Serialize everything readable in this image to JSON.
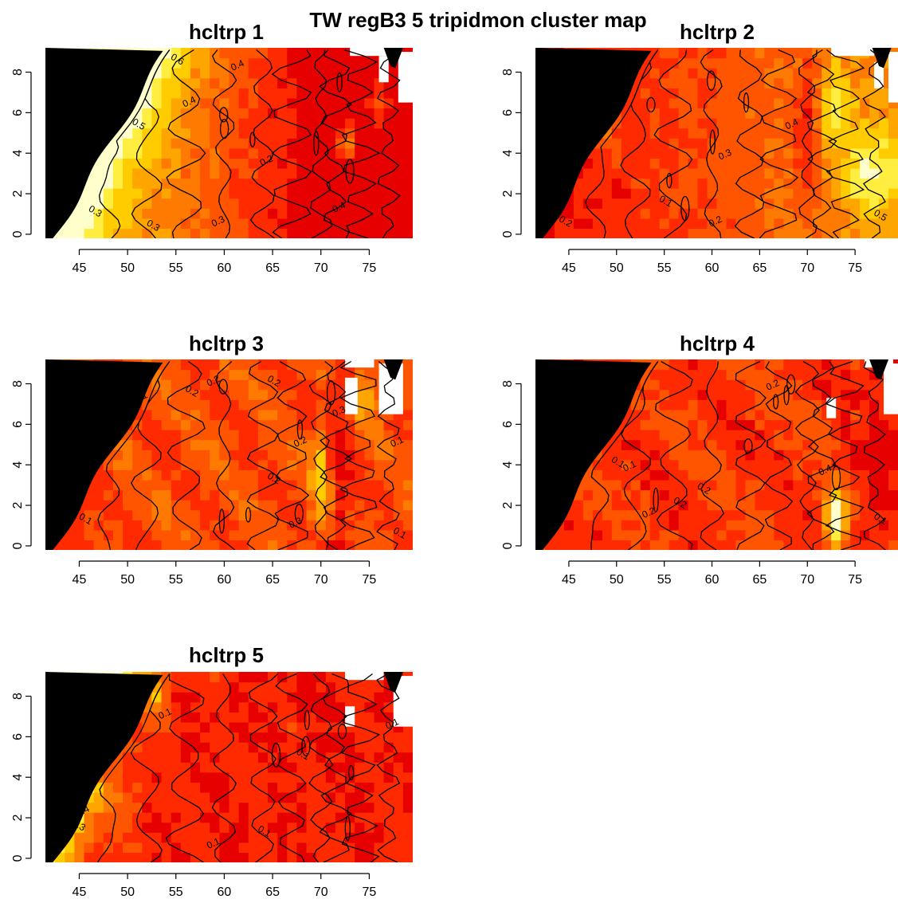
{
  "figure": {
    "title": "TW regB3 5 tripidmon cluster map"
  },
  "palette": {
    "land": "#000000",
    "missing": "#ffffff",
    "heat": [
      "#e60000",
      "#ff2a00",
      "#ff5500",
      "#ff7a00",
      "#ffa500",
      "#ffcc00",
      "#ffee40",
      "#ffffcc"
    ]
  },
  "chart_data": [
    {
      "type": "heatmap",
      "panel": "hcltrp 1",
      "title": "hcltrp 1",
      "xlim": [
        41.5,
        79.5
      ],
      "ylim": [
        -0.2,
        9.2
      ],
      "x_ticks": [
        45,
        50,
        55,
        60,
        65,
        70,
        75
      ],
      "y_ticks": [
        0,
        2,
        4,
        6,
        8
      ],
      "scheme": 1,
      "contour_labels": [
        {
          "x": 56.5,
          "y": 6.4,
          "text": "0.4"
        },
        {
          "x": 55.0,
          "y": 8.5,
          "text": "0.6"
        },
        {
          "x": 61.5,
          "y": 8.2,
          "text": "0.4"
        },
        {
          "x": 51.0,
          "y": 5.3,
          "text": "0.5"
        },
        {
          "x": 64.5,
          "y": 3.5,
          "text": "0.2"
        },
        {
          "x": 52.5,
          "y": 0.3,
          "text": "0.3"
        },
        {
          "x": 59.5,
          "y": 0.5,
          "text": "0.3"
        },
        {
          "x": 46.5,
          "y": 1.0,
          "text": "0.3"
        },
        {
          "x": 72.0,
          "y": 1.2,
          "text": "0.4"
        }
      ]
    },
    {
      "type": "heatmap",
      "panel": "hcltrp 2",
      "title": "hcltrp 2",
      "xlim": [
        41.5,
        79.5
      ],
      "ylim": [
        -0.2,
        9.2
      ],
      "x_ticks": [
        45,
        50,
        55,
        60,
        65,
        70,
        75
      ],
      "y_ticks": [
        0,
        2,
        4,
        6,
        8
      ],
      "scheme": 2,
      "contour_labels": [
        {
          "x": 61.5,
          "y": 3.8,
          "text": "0.3"
        },
        {
          "x": 55.0,
          "y": 1.5,
          "text": "0.1"
        },
        {
          "x": 60.5,
          "y": 0.5,
          "text": "0.2"
        },
        {
          "x": 44.5,
          "y": 0.5,
          "text": "0.2"
        },
        {
          "x": 68.5,
          "y": 5.3,
          "text": "0.4"
        },
        {
          "x": 77.5,
          "y": 0.8,
          "text": "0.5"
        }
      ]
    },
    {
      "type": "heatmap",
      "panel": "hcltrp 3",
      "title": "hcltrp 3",
      "xlim": [
        41.5,
        79.5
      ],
      "ylim": [
        -0.2,
        9.2
      ],
      "x_ticks": [
        45,
        50,
        55,
        60,
        65,
        70,
        75
      ],
      "y_ticks": [
        0,
        2,
        4,
        6,
        8
      ],
      "scheme": 3,
      "contour_labels": [
        {
          "x": 51.5,
          "y": 7.2,
          "text": "0.1"
        },
        {
          "x": 56.5,
          "y": 7.5,
          "text": "0.2"
        },
        {
          "x": 59.0,
          "y": 8.0,
          "text": "0.2"
        },
        {
          "x": 65.0,
          "y": 8.0,
          "text": "0.2"
        },
        {
          "x": 68.0,
          "y": 5.0,
          "text": "0.2"
        },
        {
          "x": 65.0,
          "y": 3.2,
          "text": "0.2"
        },
        {
          "x": 67.5,
          "y": 1.0,
          "text": "0.3"
        },
        {
          "x": 45.5,
          "y": 1.2,
          "text": "0.1"
        },
        {
          "x": 78.0,
          "y": 5.0,
          "text": "0.1"
        },
        {
          "x": 78.0,
          "y": 0.5,
          "text": "0.1"
        },
        {
          "x": 72.0,
          "y": 6.5,
          "text": "0.3"
        }
      ]
    },
    {
      "type": "heatmap",
      "panel": "hcltrp 4",
      "title": "hcltrp 4",
      "xlim": [
        41.5,
        79.5
      ],
      "ylim": [
        -0.2,
        9.2
      ],
      "x_ticks": [
        45,
        50,
        55,
        60,
        65,
        70,
        75
      ],
      "y_ticks": [
        0,
        2,
        4,
        6,
        8
      ],
      "scheme": 4,
      "contour_labels": [
        {
          "x": 66.5,
          "y": 7.8,
          "text": "0.2"
        },
        {
          "x": 50.0,
          "y": 4.0,
          "text": "0.1"
        },
        {
          "x": 51.5,
          "y": 3.8,
          "text": "0.1"
        },
        {
          "x": 56.5,
          "y": 2.0,
          "text": "0.2"
        },
        {
          "x": 53.5,
          "y": 1.5,
          "text": "0.2"
        },
        {
          "x": 59.0,
          "y": 2.7,
          "text": "0.2"
        },
        {
          "x": 72.0,
          "y": 3.6,
          "text": "0.4"
        },
        {
          "x": 77.5,
          "y": 1.2,
          "text": "0.1"
        }
      ]
    },
    {
      "type": "heatmap",
      "panel": "hcltrp 5",
      "title": "hcltrp 5",
      "xlim": [
        41.5,
        79.5
      ],
      "ylim": [
        -0.2,
        9.2
      ],
      "x_ticks": [
        45,
        50,
        55,
        60,
        65,
        70,
        75
      ],
      "y_ticks": [
        0,
        2,
        4,
        6,
        8
      ],
      "scheme": 5,
      "contour_labels": [
        {
          "x": 54.0,
          "y": 7.0,
          "text": "0.1"
        },
        {
          "x": 68.0,
          "y": 5.0,
          "text": "0.1"
        },
        {
          "x": 59.0,
          "y": 0.6,
          "text": "0.1"
        },
        {
          "x": 64.0,
          "y": 1.2,
          "text": "0.1"
        },
        {
          "x": 45.5,
          "y": 2.2,
          "text": "0.4"
        },
        {
          "x": 44.8,
          "y": 1.5,
          "text": "0.3"
        },
        {
          "x": 77.5,
          "y": 6.5,
          "text": "0.1"
        }
      ]
    }
  ]
}
